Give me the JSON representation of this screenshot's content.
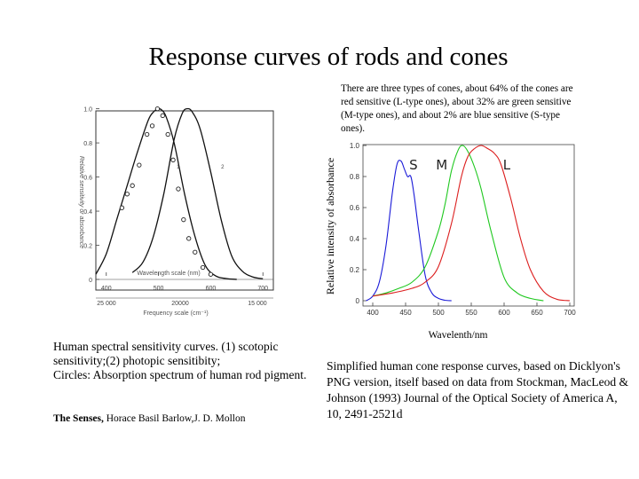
{
  "slide": {
    "title": "Response curves of rods and cones",
    "cones_note": "There are three types of cones, about 64% of the cones are red sensitive (L-type ones), about 32% are green sensitive (M-type ones), and about 2% are blue sensitive (S-type ones).",
    "left_caption": "Human spectral sensitivity curves. (1) scotopic sensitivity;(2) photopic sensitibity;\n Circles: Absorption spectrum of human rod pigment.",
    "left_source_title": "The Senses,",
    "left_source_authors": " Horace Basil Barlow,J. D. Mollon",
    "right_caption": "Simplified human cone response curves, based on Dicklyon's PNG version, itself based on data from Stockman, MacLeod & Johnson (1993) Journal of the Optical Society of America A, 10, 2491-2521d"
  },
  "chart_data": [
    {
      "type": "line",
      "title": "",
      "ylabel": "Relative sensitivity or absorbance",
      "xlabel": "Wavelength scale (nm)",
      "x2label": "Frequency scale (cm⁻¹)",
      "xlim": [
        380,
        720
      ],
      "ylim": [
        0,
        1.05
      ],
      "yticks": [
        0,
        0.2,
        0.4,
        0.6,
        0.8,
        1.0
      ],
      "ytick_labels": [
        "0",
        "0.2",
        "0.4",
        "0.6",
        "0.8",
        "1.0"
      ],
      "xticks": [
        400,
        500,
        600,
        700
      ],
      "xtick_labels": [
        "400",
        "500",
        "600",
        "700"
      ],
      "x2tick_labels": [
        "25 000",
        "20000",
        "15 000"
      ],
      "curve_labels": [
        "1",
        "2"
      ],
      "series": [
        {
          "name": "scotopic (1)",
          "style": "line",
          "x": [
            380,
            400,
            420,
            440,
            460,
            480,
            490,
            500,
            507,
            515,
            530,
            550,
            570,
            590,
            610,
            630,
            650
          ],
          "y": [
            0.03,
            0.15,
            0.35,
            0.55,
            0.75,
            0.93,
            0.98,
            1.0,
            0.99,
            0.95,
            0.8,
            0.5,
            0.25,
            0.08,
            0.02,
            0.005,
            0
          ]
        },
        {
          "name": "photopic (2)",
          "style": "line",
          "x": [
            450,
            470,
            490,
            510,
            530,
            545,
            555,
            565,
            580,
            600,
            620,
            640,
            660,
            680,
            700
          ],
          "y": [
            0.04,
            0.1,
            0.25,
            0.5,
            0.82,
            0.97,
            1.0,
            0.98,
            0.88,
            0.63,
            0.35,
            0.14,
            0.05,
            0.015,
            0.004
          ]
        },
        {
          "name": "rod pigment absorption",
          "style": "circles",
          "x": [
            430,
            440,
            450,
            463,
            478,
            488,
            498,
            508,
            518,
            528,
            538,
            548,
            558,
            570,
            585,
            600
          ],
          "y": [
            0.42,
            0.5,
            0.55,
            0.67,
            0.85,
            0.9,
            1.0,
            0.96,
            0.85,
            0.7,
            0.53,
            0.35,
            0.24,
            0.16,
            0.07,
            0.03
          ]
        }
      ]
    },
    {
      "type": "line",
      "title": "",
      "ylabel": "Relative intensity of absorbance",
      "xlabel": "Wavelenth/nm",
      "xlim": [
        385,
        710
      ],
      "ylim": [
        0,
        1.0
      ],
      "yticks": [
        0,
        0.2,
        0.4,
        0.6,
        0.8,
        1.0
      ],
      "ytick_labels": [
        "0",
        "0.2",
        "0.4",
        "0.6",
        "0.8",
        "1.0"
      ],
      "xticks": [
        400,
        450,
        500,
        550,
        600,
        650,
        700
      ],
      "xtick_labels": [
        "400",
        "450",
        "500",
        "550",
        "600",
        "650",
        "700"
      ],
      "series": [
        {
          "name": "S",
          "color": "#1a1ad8",
          "x": [
            390,
            400,
            410,
            420,
            430,
            437,
            443,
            448,
            453,
            458,
            463,
            470,
            480,
            490,
            500,
            510,
            520
          ],
          "y": [
            0.0,
            0.03,
            0.12,
            0.35,
            0.7,
            0.88,
            0.9,
            0.85,
            0.8,
            0.8,
            0.68,
            0.45,
            0.16,
            0.05,
            0.015,
            0.003,
            0.0
          ]
        },
        {
          "name": "M",
          "color": "#1ec81e",
          "x": [
            400,
            420,
            440,
            460,
            480,
            500,
            510,
            520,
            530,
            537,
            545,
            555,
            565,
            580,
            600,
            620,
            640,
            660
          ],
          "y": [
            0.03,
            0.05,
            0.08,
            0.12,
            0.22,
            0.45,
            0.62,
            0.84,
            0.97,
            1.0,
            0.96,
            0.86,
            0.72,
            0.45,
            0.15,
            0.05,
            0.015,
            0.0
          ]
        },
        {
          "name": "L",
          "color": "#dc1e1e",
          "x": [
            400,
            430,
            460,
            480,
            500,
            520,
            535,
            545,
            555,
            565,
            575,
            585,
            595,
            610,
            625,
            640,
            660,
            680,
            700
          ],
          "y": [
            0.03,
            0.05,
            0.08,
            0.12,
            0.22,
            0.5,
            0.8,
            0.93,
            0.98,
            1.0,
            0.98,
            0.95,
            0.88,
            0.66,
            0.4,
            0.2,
            0.06,
            0.01,
            0.0
          ]
        }
      ]
    }
  ]
}
